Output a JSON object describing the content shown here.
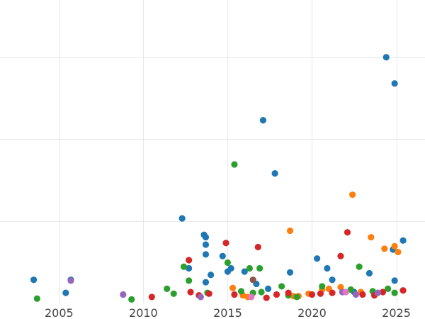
{
  "chart_data": {
    "type": "scatter",
    "title": "",
    "xlabel": "",
    "ylabel": "",
    "xlim": [
      2001.5,
      2026.7
    ],
    "ylim": [
      0,
      37
    ],
    "x_ticks": [
      2005,
      2010,
      2015,
      2020,
      2025
    ],
    "x_tick_labels": [
      "2005",
      "2010",
      "2015",
      "2020",
      "2025"
    ],
    "y_gridlines": [
      10,
      20,
      30
    ],
    "grid": true,
    "series": [
      {
        "color": "#1f77b4",
        "points": [
          {
            "x": 2003.5,
            "y": 2.8
          },
          {
            "x": 2005.4,
            "y": 1.2
          },
          {
            "x": 2005.7,
            "y": 2.8
          },
          {
            "x": 2012.3,
            "y": 10.3
          },
          {
            "x": 2012.7,
            "y": 4.2
          },
          {
            "x": 2013.6,
            "y": 8.3
          },
          {
            "x": 2013.7,
            "y": 8.0
          },
          {
            "x": 2013.7,
            "y": 7.1
          },
          {
            "x": 2013.7,
            "y": 5.9
          },
          {
            "x": 2013.7,
            "y": 2.5
          },
          {
            "x": 2014.0,
            "y": 3.4
          },
          {
            "x": 2014.7,
            "y": 5.7
          },
          {
            "x": 2015.0,
            "y": 3.8
          },
          {
            "x": 2015.2,
            "y": 4.2
          },
          {
            "x": 2016.0,
            "y": 3.8
          },
          {
            "x": 2016.7,
            "y": 2.3
          },
          {
            "x": 2017.1,
            "y": 22.3
          },
          {
            "x": 2017.4,
            "y": 1.7
          },
          {
            "x": 2017.8,
            "y": 15.8
          },
          {
            "x": 2018.7,
            "y": 3.7
          },
          {
            "x": 2020.3,
            "y": 5.4
          },
          {
            "x": 2020.9,
            "y": 4.2
          },
          {
            "x": 2021.2,
            "y": 2.8
          },
          {
            "x": 2022.5,
            "y": 1.3
          },
          {
            "x": 2023.4,
            "y": 3.6
          },
          {
            "x": 2024.4,
            "y": 30.0
          },
          {
            "x": 2024.8,
            "y": 6.5
          },
          {
            "x": 2024.9,
            "y": 26.8
          },
          {
            "x": 2024.9,
            "y": 2.7
          },
          {
            "x": 2025.4,
            "y": 7.6
          }
        ]
      },
      {
        "color": "#ff7f0e",
        "points": [
          {
            "x": 2015.3,
            "y": 1.8
          },
          {
            "x": 2015.9,
            "y": 0.9
          },
          {
            "x": 2016.2,
            "y": 0.7
          },
          {
            "x": 2018.7,
            "y": 8.8
          },
          {
            "x": 2018.9,
            "y": 0.8
          },
          {
            "x": 2019.2,
            "y": 0.8
          },
          {
            "x": 2019.8,
            "y": 1.1
          },
          {
            "x": 2020.6,
            "y": 1.6
          },
          {
            "x": 2021.0,
            "y": 1.7
          },
          {
            "x": 2021.7,
            "y": 1.9
          },
          {
            "x": 2022.4,
            "y": 13.2
          },
          {
            "x": 2022.9,
            "y": 1.3
          },
          {
            "x": 2023.5,
            "y": 8.0
          },
          {
            "x": 2024.3,
            "y": 6.6
          },
          {
            "x": 2024.9,
            "y": 6.9
          },
          {
            "x": 2025.1,
            "y": 6.2
          }
        ]
      },
      {
        "color": "#2ca02c",
        "points": [
          {
            "x": 2003.7,
            "y": 0.5
          },
          {
            "x": 2009.3,
            "y": 0.4
          },
          {
            "x": 2011.4,
            "y": 1.7
          },
          {
            "x": 2011.8,
            "y": 1.1
          },
          {
            "x": 2012.4,
            "y": 4.4
          },
          {
            "x": 2012.7,
            "y": 2.7
          },
          {
            "x": 2013.8,
            "y": 1.2
          },
          {
            "x": 2015.0,
            "y": 4.9
          },
          {
            "x": 2015.4,
            "y": 16.9
          },
          {
            "x": 2015.8,
            "y": 1.4
          },
          {
            "x": 2016.3,
            "y": 4.2
          },
          {
            "x": 2016.5,
            "y": 1.2
          },
          {
            "x": 2016.9,
            "y": 4.2
          },
          {
            "x": 2017.0,
            "y": 1.3
          },
          {
            "x": 2018.2,
            "y": 2.0
          },
          {
            "x": 2018.6,
            "y": 0.9
          },
          {
            "x": 2019.1,
            "y": 0.7
          },
          {
            "x": 2020.6,
            "y": 2.0
          },
          {
            "x": 2022.3,
            "y": 1.6
          },
          {
            "x": 2022.8,
            "y": 4.4
          },
          {
            "x": 2023.6,
            "y": 1.4
          },
          {
            "x": 2024.5,
            "y": 1.7
          },
          {
            "x": 2024.9,
            "y": 1.2
          }
        ]
      },
      {
        "color": "#d62728",
        "points": [
          {
            "x": 2010.5,
            "y": 0.7
          },
          {
            "x": 2012.7,
            "y": 5.2
          },
          {
            "x": 2012.8,
            "y": 1.3
          },
          {
            "x": 2013.3,
            "y": 0.9
          },
          {
            "x": 2013.9,
            "y": 1.1
          },
          {
            "x": 2014.9,
            "y": 7.3
          },
          {
            "x": 2015.4,
            "y": 1.0
          },
          {
            "x": 2016.8,
            "y": 6.8
          },
          {
            "x": 2017.3,
            "y": 0.6
          },
          {
            "x": 2017.9,
            "y": 1.0
          },
          {
            "x": 2018.6,
            "y": 1.2
          },
          {
            "x": 2020.0,
            "y": 1.0
          },
          {
            "x": 2020.5,
            "y": 1.1
          },
          {
            "x": 2021.2,
            "y": 1.2
          },
          {
            "x": 2021.7,
            "y": 5.7
          },
          {
            "x": 2022.1,
            "y": 8.6
          },
          {
            "x": 2023.0,
            "y": 1.0
          },
          {
            "x": 2023.7,
            "y": 0.9
          },
          {
            "x": 2024.2,
            "y": 1.3
          },
          {
            "x": 2025.4,
            "y": 1.5
          }
        ]
      },
      {
        "color": "#9467bd",
        "points": [
          {
            "x": 2005.7,
            "y": 2.7
          },
          {
            "x": 2008.8,
            "y": 1.0
          },
          {
            "x": 2013.4,
            "y": 0.7
          },
          {
            "x": 2021.8,
            "y": 1.3
          },
          {
            "x": 2022.6,
            "y": 1.0
          },
          {
            "x": 2023.9,
            "y": 1.2
          }
        ]
      },
      {
        "color": "#8c564b",
        "points": [
          {
            "x": 2016.5,
            "y": 2.8
          }
        ]
      },
      {
        "color": "#e377c2",
        "points": [
          {
            "x": 2016.4,
            "y": 0.7
          },
          {
            "x": 2022.0,
            "y": 1.3
          }
        ]
      }
    ]
  }
}
